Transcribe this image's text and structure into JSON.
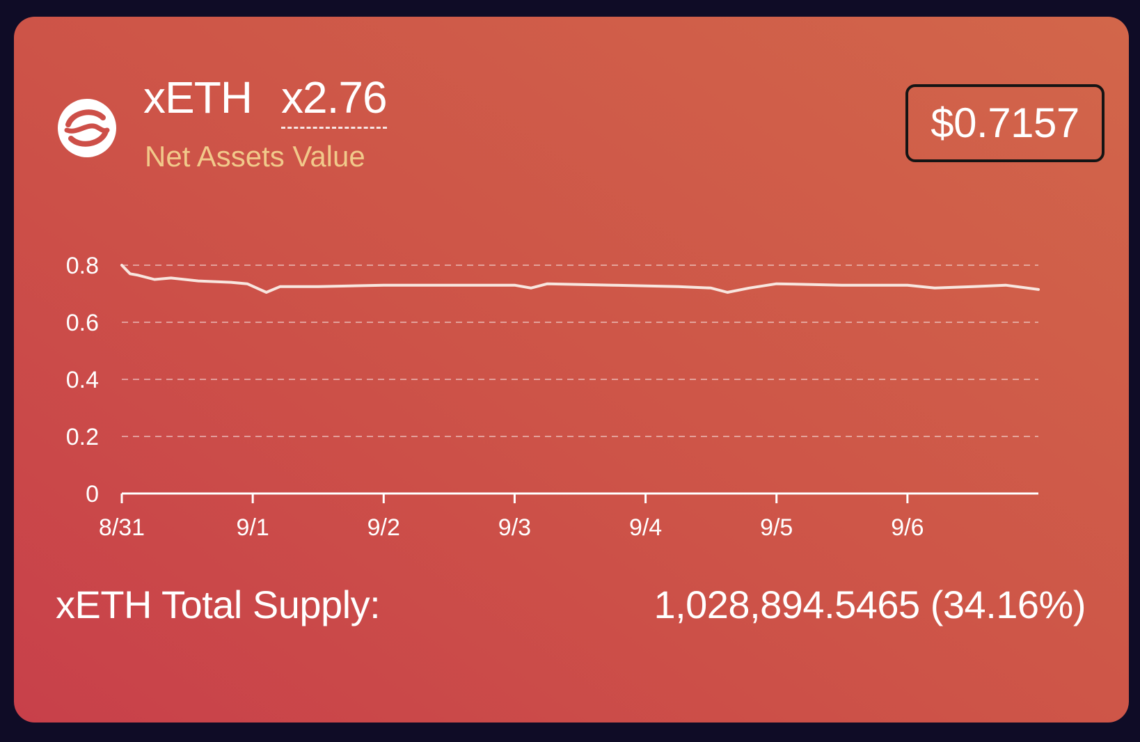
{
  "token": {
    "name": "xETH",
    "leverage": "x2.76",
    "subtitle": "Net Assets Value",
    "logo_icon": "swap-cycle-icon"
  },
  "price": {
    "value": "$0.7157"
  },
  "supply": {
    "label": "xETH Total Supply:",
    "value": "1,028,894.5465 (34.16%)"
  },
  "colors": {
    "card_start": "#c8404a",
    "card_end": "#d2664a",
    "accent_label": "#f1c98a",
    "line": "#f8e6df",
    "frame": "#0f0c26"
  },
  "chart_data": {
    "type": "line",
    "title": "",
    "xlabel": "",
    "ylabel": "",
    "ylim": [
      0,
      0.8
    ],
    "y_ticks": [
      "0",
      "0.2",
      "0.4",
      "0.6",
      "0.8"
    ],
    "x_ticks": [
      "8/31",
      "9/1",
      "9/2",
      "9/3",
      "9/4",
      "9/5",
      "9/6"
    ],
    "xlim": [
      "2023-08-31",
      "2023-09-07"
    ],
    "grid": true,
    "series": [
      {
        "points": [
          [
            "2023-08-31T00:00",
            0.8
          ],
          [
            "2023-08-31T01:30",
            0.77
          ],
          [
            "2023-08-31T03:00",
            0.765
          ],
          [
            "2023-08-31T06:00",
            0.75
          ],
          [
            "2023-08-31T09:00",
            0.755
          ],
          [
            "2023-08-31T14:00",
            0.745
          ],
          [
            "2023-08-31T20:00",
            0.74
          ],
          [
            "2023-08-31T23:00",
            0.735
          ],
          [
            "2023-09-01T02:30",
            0.705
          ],
          [
            "2023-09-01T05:00",
            0.725
          ],
          [
            "2023-09-01T12:00",
            0.725
          ],
          [
            "2023-09-02T00:00",
            0.73
          ],
          [
            "2023-09-02T12:00",
            0.73
          ],
          [
            "2023-09-03T00:00",
            0.73
          ],
          [
            "2023-09-03T03:00",
            0.72
          ],
          [
            "2023-09-03T06:00",
            0.735
          ],
          [
            "2023-09-03T18:00",
            0.73
          ],
          [
            "2023-09-04T06:00",
            0.725
          ],
          [
            "2023-09-04T12:00",
            0.72
          ],
          [
            "2023-09-04T15:00",
            0.705
          ],
          [
            "2023-09-04T19:00",
            0.72
          ],
          [
            "2023-09-05T00:00",
            0.735
          ],
          [
            "2023-09-05T12:00",
            0.73
          ],
          [
            "2023-09-06T00:00",
            0.73
          ],
          [
            "2023-09-06T05:00",
            0.72
          ],
          [
            "2023-09-06T12:00",
            0.725
          ],
          [
            "2023-09-06T18:00",
            0.73
          ],
          [
            "2023-09-07T00:00",
            0.715
          ]
        ]
      }
    ]
  }
}
